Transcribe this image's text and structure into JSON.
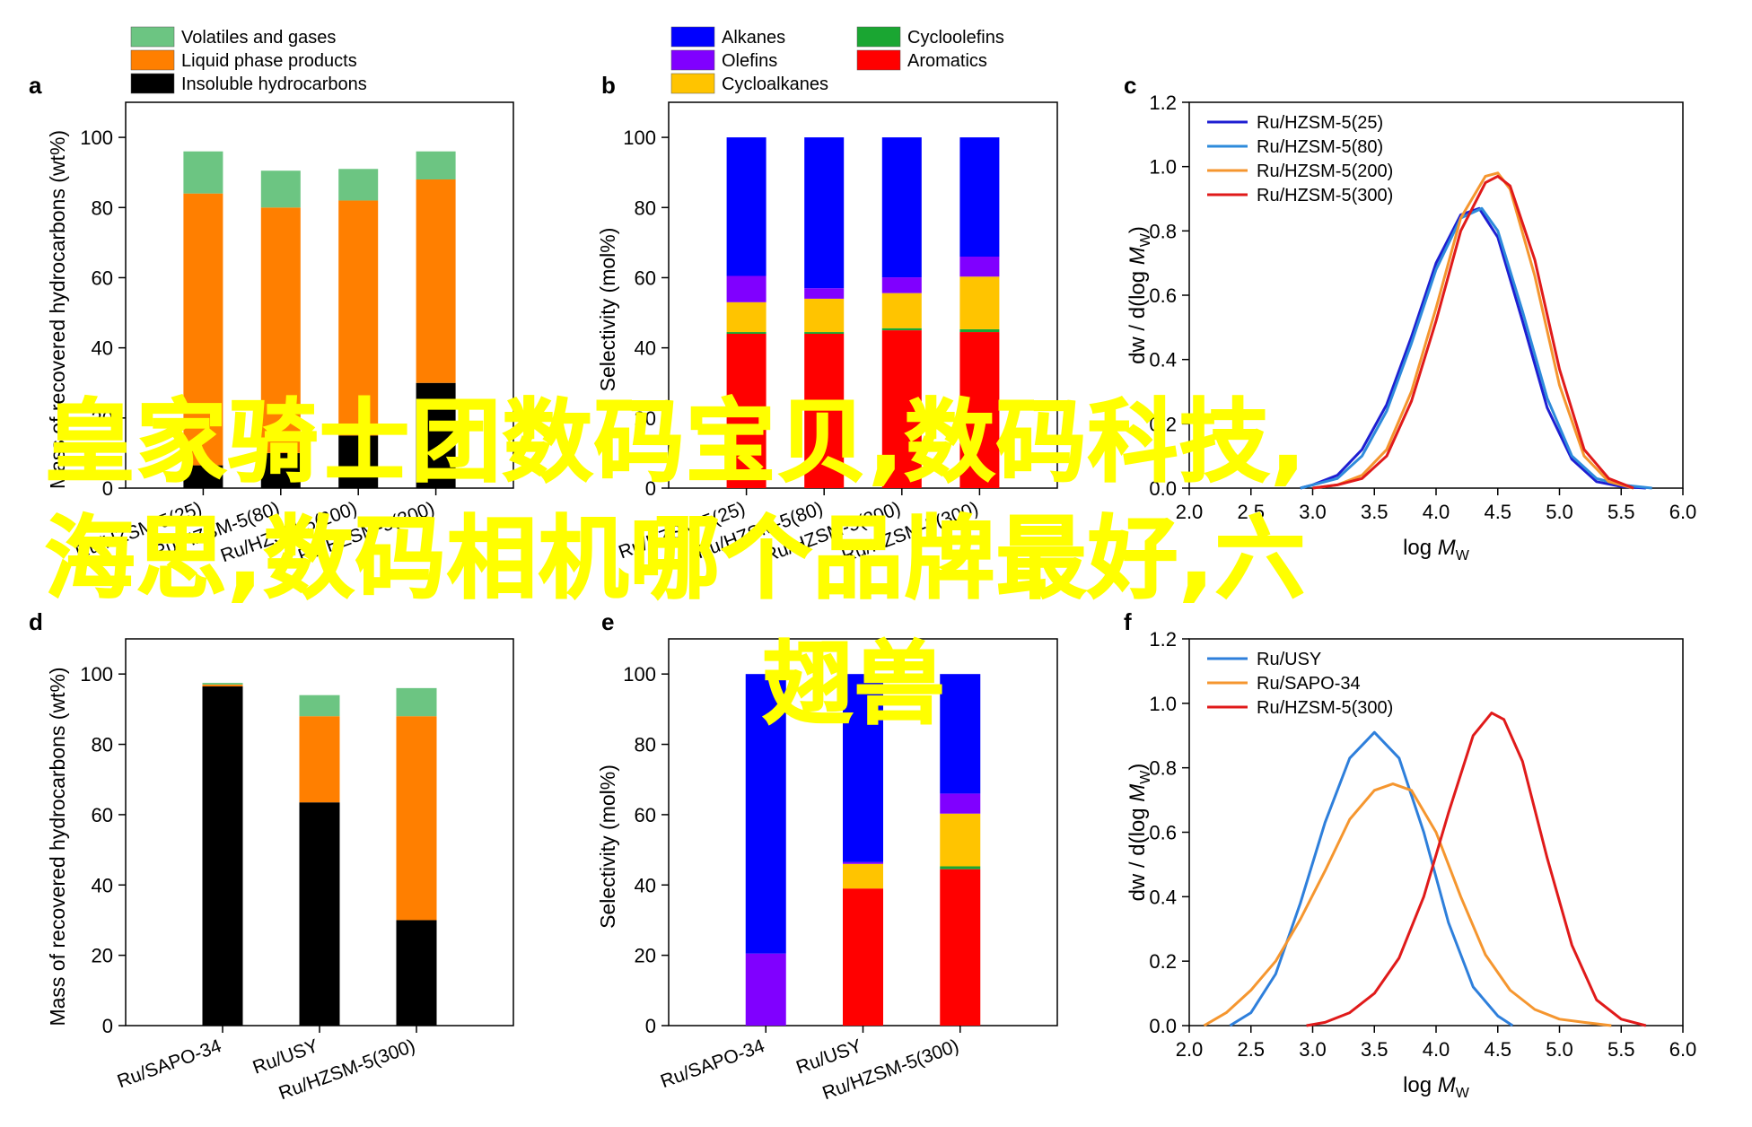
{
  "chart_data": [
    {
      "panel": "a",
      "type": "bar",
      "stacked": true,
      "ylabel": "Mass of recovered hydrocarbons (wt%)",
      "ylim": [
        0,
        110
      ],
      "yticks": [
        0,
        20,
        40,
        60,
        80,
        100
      ],
      "categories": [
        "Ru/HZSM-5(25)",
        "Ru/HZSM-5(80)",
        "Ru/HZSM-5(200)",
        "Ru/HZSM-5(300)"
      ],
      "series": [
        {
          "name": "Insoluble hydrocarbons",
          "color": "#000000",
          "values": [
            6.5,
            10,
            15,
            30
          ]
        },
        {
          "name": "Liquid phase products",
          "color": "#ff7f00",
          "values": [
            77.5,
            70,
            67,
            58
          ]
        },
        {
          "name": "Volatiles and gases",
          "color": "#6cc582",
          "values": [
            12,
            10.5,
            9,
            8
          ]
        }
      ]
    },
    {
      "panel": "b",
      "type": "bar",
      "stacked": true,
      "ylabel": "Selectivity (mol%)",
      "ylim": [
        0,
        110
      ],
      "yticks": [
        0,
        20,
        40,
        60,
        80,
        100
      ],
      "categories": [
        "Ru/HZSM-5(25)",
        "Ru/HZSM-5(80)",
        "Ru/HZSM-5(200)",
        "Ru/HZSM-5(300)"
      ],
      "series": [
        {
          "name": "Aromatics",
          "color": "#ff0000",
          "values": [
            44,
            44,
            45,
            44.5
          ]
        },
        {
          "name": "Cycloolefins",
          "color": "#1aa632",
          "values": [
            0.5,
            0.5,
            0.6,
            0.8
          ]
        },
        {
          "name": "Cycloalkanes",
          "color": "#ffc400",
          "values": [
            8.5,
            9.5,
            10,
            15
          ]
        },
        {
          "name": "Olefins",
          "color": "#8000ff",
          "values": [
            7.5,
            3,
            4.5,
            5.7
          ]
        },
        {
          "name": "Alkanes",
          "color": "#0000ff",
          "values": [
            39.5,
            43,
            39.9,
            34
          ]
        }
      ]
    },
    {
      "panel": "c",
      "type": "line",
      "xlabel": "log M_W",
      "ylabel": "dw / d(log M_W)",
      "xlim": [
        2.0,
        6.0
      ],
      "ylim": [
        0,
        1.2
      ],
      "xticks": [
        2.0,
        2.5,
        3.0,
        3.5,
        4.0,
        4.5,
        5.0,
        5.5,
        6.0
      ],
      "yticks": [
        0.0,
        0.2,
        0.4,
        0.6,
        0.8,
        1.0,
        1.2
      ],
      "series": [
        {
          "name": "Ru/HZSM-5(25)",
          "color": "#1e1ed2",
          "x": [
            2.9,
            3.0,
            3.2,
            3.4,
            3.6,
            3.8,
            4.0,
            4.2,
            4.35,
            4.5,
            4.7,
            4.9,
            5.1,
            5.3,
            5.5,
            5.7
          ],
          "y": [
            0.0,
            0.01,
            0.04,
            0.12,
            0.26,
            0.47,
            0.7,
            0.85,
            0.87,
            0.78,
            0.52,
            0.25,
            0.09,
            0.02,
            0.005,
            0.0
          ]
        },
        {
          "name": "Ru/HZSM-5(80)",
          "color": "#2e8bdb",
          "x": [
            2.9,
            3.0,
            3.2,
            3.4,
            3.6,
            3.8,
            4.0,
            4.2,
            4.37,
            4.5,
            4.7,
            4.9,
            5.1,
            5.3,
            5.5,
            5.75
          ],
          "y": [
            0.0,
            0.01,
            0.03,
            0.1,
            0.24,
            0.45,
            0.68,
            0.84,
            0.87,
            0.8,
            0.55,
            0.28,
            0.1,
            0.03,
            0.01,
            0.0
          ]
        },
        {
          "name": "Ru/HZSM-5(200)",
          "color": "#f5962f",
          "x": [
            3.0,
            3.2,
            3.4,
            3.6,
            3.8,
            4.0,
            4.2,
            4.4,
            4.5,
            4.6,
            4.8,
            5.0,
            5.2,
            5.4,
            5.6
          ],
          "y": [
            0.0,
            0.01,
            0.04,
            0.12,
            0.3,
            0.56,
            0.84,
            0.97,
            0.98,
            0.93,
            0.66,
            0.32,
            0.1,
            0.02,
            0.0
          ]
        },
        {
          "name": "Ru/HZSM-5(300)",
          "color": "#e01a1a",
          "x": [
            3.0,
            3.2,
            3.4,
            3.6,
            3.8,
            4.0,
            4.2,
            4.4,
            4.5,
            4.6,
            4.8,
            5.0,
            5.2,
            5.4,
            5.6
          ],
          "y": [
            0.0,
            0.01,
            0.03,
            0.1,
            0.27,
            0.52,
            0.8,
            0.95,
            0.97,
            0.94,
            0.71,
            0.37,
            0.12,
            0.03,
            0.0
          ]
        }
      ]
    },
    {
      "panel": "d",
      "type": "bar",
      "stacked": true,
      "ylabel": "Mass of recovered hydrocarbons (wt%)",
      "ylim": [
        0,
        110
      ],
      "yticks": [
        0,
        20,
        40,
        60,
        80,
        100
      ],
      "categories": [
        "Ru/SAPO-34",
        "Ru/USY",
        "Ru/HZSM-5(300)"
      ],
      "series": [
        {
          "name": "Insoluble hydrocarbons",
          "color": "#000000",
          "values": [
            96.5,
            63.5,
            30
          ]
        },
        {
          "name": "Liquid phase products",
          "color": "#ff7f00",
          "values": [
            0.5,
            24.5,
            58
          ]
        },
        {
          "name": "Volatiles and gases",
          "color": "#6cc582",
          "values": [
            0.5,
            6,
            8
          ]
        }
      ]
    },
    {
      "panel": "e",
      "type": "bar",
      "stacked": true,
      "ylabel": "Selectivity (mol%)",
      "ylim": [
        0,
        110
      ],
      "yticks": [
        0,
        20,
        40,
        60,
        80,
        100
      ],
      "categories": [
        "Ru/SAPO-34",
        "Ru/USY",
        "Ru/HZSM-5(300)"
      ],
      "series": [
        {
          "name": "Aromatics",
          "color": "#ff0000",
          "values": [
            0,
            39,
            44.5
          ]
        },
        {
          "name": "Cycloolefins",
          "color": "#1aa632",
          "values": [
            0,
            0,
            0.8
          ]
        },
        {
          "name": "Cycloalkanes",
          "color": "#ffc400",
          "values": [
            0,
            7,
            15
          ]
        },
        {
          "name": "Olefins",
          "color": "#8000ff",
          "values": [
            20.5,
            0.5,
            5.7
          ]
        },
        {
          "name": "Alkanes",
          "color": "#0000ff",
          "values": [
            79.5,
            53.5,
            34
          ]
        }
      ]
    },
    {
      "panel": "f",
      "type": "line",
      "xlabel": "log M_W",
      "ylabel": "dw / d(log M_W)",
      "xlim": [
        2.0,
        6.0
      ],
      "ylim": [
        0,
        1.2
      ],
      "xticks": [
        2.0,
        2.5,
        3.0,
        3.5,
        4.0,
        4.5,
        5.0,
        5.5,
        6.0
      ],
      "yticks": [
        0.0,
        0.2,
        0.4,
        0.6,
        0.8,
        1.0,
        1.2
      ],
      "series": [
        {
          "name": "Ru/USY",
          "color": "#2e7fdb",
          "x": [
            2.33,
            2.5,
            2.7,
            2.9,
            3.1,
            3.3,
            3.5,
            3.7,
            3.9,
            4.1,
            4.3,
            4.5,
            4.62
          ],
          "y": [
            0.0,
            0.04,
            0.16,
            0.38,
            0.63,
            0.83,
            0.91,
            0.83,
            0.6,
            0.32,
            0.12,
            0.03,
            0.0
          ]
        },
        {
          "name": "Ru/SAPO-34",
          "color": "#f5962f",
          "x": [
            2.12,
            2.3,
            2.5,
            2.7,
            2.9,
            3.1,
            3.3,
            3.5,
            3.65,
            3.8,
            4.0,
            4.2,
            4.4,
            4.6,
            4.8,
            5.0,
            5.2,
            5.42
          ],
          "y": [
            0.0,
            0.04,
            0.11,
            0.2,
            0.33,
            0.48,
            0.64,
            0.73,
            0.75,
            0.73,
            0.6,
            0.4,
            0.22,
            0.11,
            0.05,
            0.02,
            0.01,
            0.0
          ]
        },
        {
          "name": "Ru/HZSM-5(300)",
          "color": "#e01a1a",
          "x": [
            2.95,
            3.1,
            3.3,
            3.5,
            3.7,
            3.9,
            4.1,
            4.3,
            4.45,
            4.55,
            4.7,
            4.9,
            5.1,
            5.3,
            5.5,
            5.7
          ],
          "y": [
            0.0,
            0.01,
            0.04,
            0.1,
            0.21,
            0.4,
            0.66,
            0.9,
            0.97,
            0.95,
            0.82,
            0.52,
            0.25,
            0.08,
            0.02,
            0.0
          ]
        }
      ]
    }
  ],
  "overlay_lines": [
    "皇家骑士团数码宝贝,数码科技,",
    "海思,数码相机哪个品牌最好,六",
    "翅兽"
  ],
  "overlay_color": "#ffff00"
}
